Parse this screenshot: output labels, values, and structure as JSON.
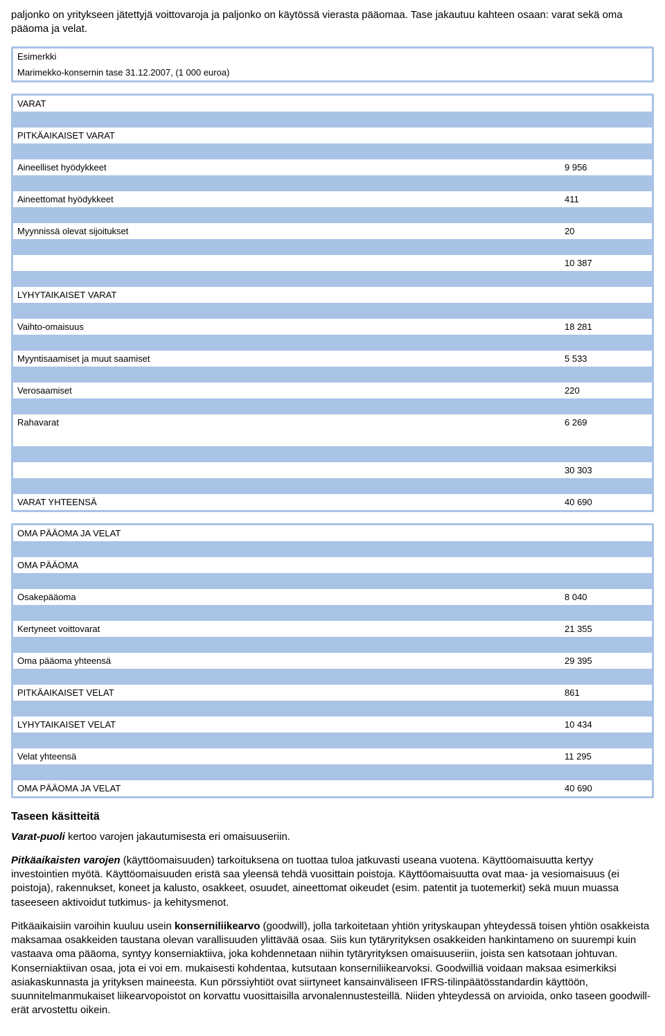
{
  "intro": "paljonko on yritykseen jätettyjä voittovaroja ja paljonko on käytössä vierasta pääomaa. Tase jakautuu kahteen osaan: varat sekä oma pääoma ja velat.",
  "example": {
    "line1": "Esimerkki",
    "line2": "Marimekko-konsernin tase 31.12.2007, (1 000 euroa)"
  },
  "t1": {
    "r0": "VARAT",
    "r1": "PITKÄAIKAISET VARAT",
    "r2l": "Aineelliset hyödykkeet",
    "r2v": "9 956",
    "r3l": "Aineettomat hyödykkeet",
    "r3v": "411",
    "r4l": "Myynnissä olevat sijoitukset",
    "r4v": "20",
    "r5v": "10 387",
    "r6": "LYHYTAIKAISET VARAT",
    "r7l": "Vaihto-omaisuus",
    "r7v": "18 281",
    "r8l": "Myyntisaamiset ja muut saamiset",
    "r8v": "5 533",
    "r9l": "Verosaamiset",
    "r9v": "220",
    "r10l": "Rahavarat",
    "r10v": "6 269",
    "r11v": "30 303",
    "r12l": "VARAT YHTEENSÄ",
    "r12v": "40 690"
  },
  "t2": {
    "r0": "OMA PÄÄOMA JA VELAT",
    "r1": "OMA PÄÄOMA",
    "r2l": "Osakepääoma",
    "r2v": "8 040",
    "r3l": "Kertyneet voittovarat",
    "r3v": "21 355",
    "r4l": "Oma pääoma yhteensä",
    "r4v": "29 395",
    "r5l": "PITKÄAIKAISET VELAT",
    "r5v": "861",
    "r6l": "LYHYTAIKAISET VELAT",
    "r6v": "10 434",
    "r7l": "Velat yhteensä",
    "r7v": "11 295",
    "r8l": "OMA PÄÄOMA JA VELAT",
    "r8v": "40 690"
  },
  "section_heading": "Taseen käsitteitä",
  "p1_prefix": "Varat-puoli",
  "p1_rest": " kertoo varojen jakautumisesta eri omaisuuseriin.",
  "p2_prefix": "Pitkäaikaisten varojen",
  "p2_rest": " (käyttöomaisuuden) tarkoituksena on tuottaa tuloa jatkuvasti useana vuotena. Käyttöomaisuutta kertyy investointien myötä. Käyttöomaisuuden eristä saa yleensä tehdä vuosittain poistoja. Käyttöomaisuutta ovat maa- ja vesiomaisuus (ei poistoja), rakennukset, koneet ja kalusto, osakkeet, osuudet, aineettomat oikeudet (esim. patentit ja tuotemerkit) sekä muun muassa taseeseen aktivoidut tutkimus- ja kehitysmenot.",
  "p3_a": "Pitkäaikaisiin varoihin kuuluu usein ",
  "p3_term": "konserniliikearvo",
  "p3_b": " (goodwill), jolla tarkoitetaan yhtiön yrityskaupan yhteydessä toisen yhtiön osakkeista maksamaa osakkeiden taustana olevan varallisuuden ylittävää osaa. Siis kun tytäryrityksen osakkeiden hankintameno on suurempi kuin vastaava oma pääoma, syntyy konserniaktiiva, joka kohdennetaan niihin tytäryrityksen omaisuuseriin, joista sen katsotaan johtuvan. Konserniaktiivan osaa, jota ei voi em. mukaisesti kohdentaa, kutsutaan konserniliikearvoksi. Goodwilliä voidaan maksaa esimerkiksi asiakaskunnasta ja yrityksen maineesta. Kun pörssiyhtiöt ovat siirtyneet kansainväliseen IFRS-tilinpäätösstandardin käyttöön, suunnitelmanmukaiset liikearvopoistot on korvattu vuosittaisilla arvonalennustesteillä. Niiden yhteydessä on arvioida, onko taseen goodwill-erät arvostettu oikein."
}
